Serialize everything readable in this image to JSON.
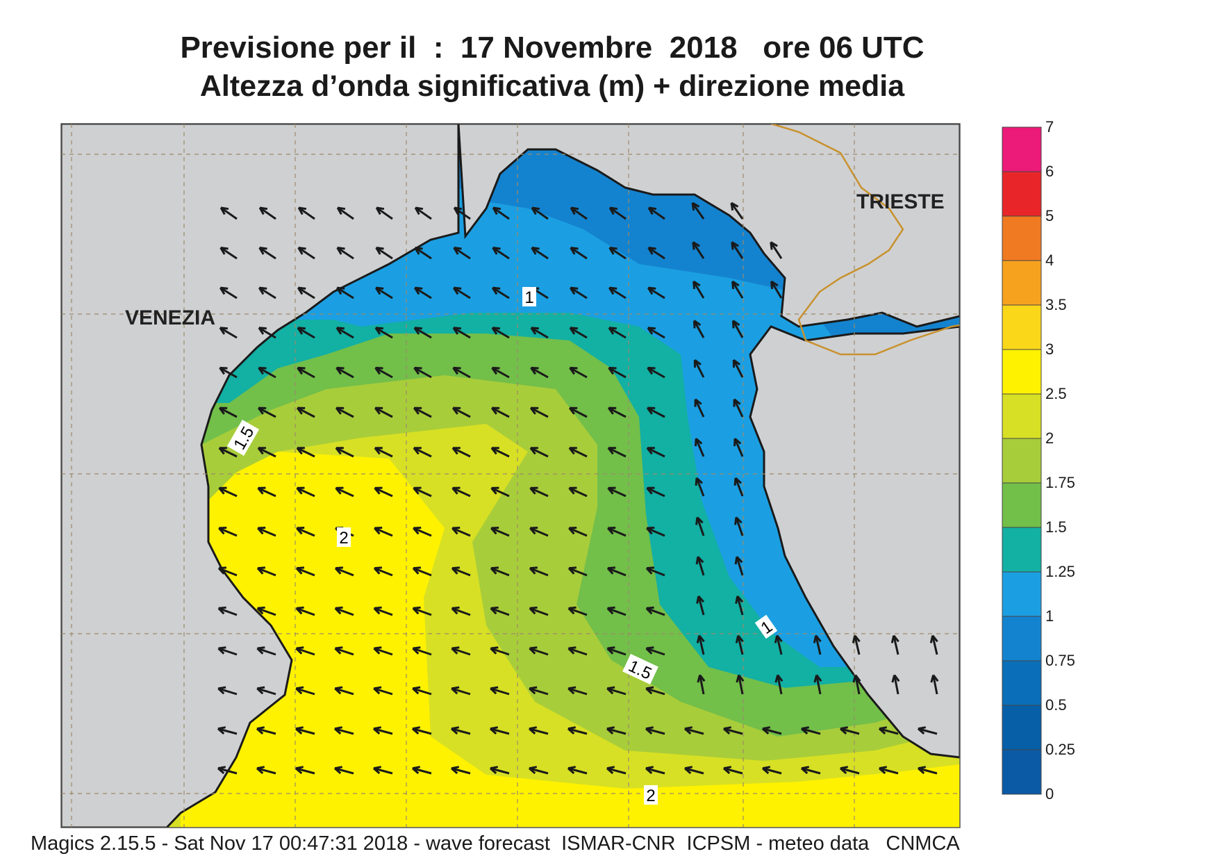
{
  "title": {
    "line1": "Previsione per il  :  17 Novembre  2018   ore 06 UTC",
    "line2": "Altezza d’onda significativa (m) + direzione media"
  },
  "cities": {
    "venezia": "VENEZIA",
    "trieste": "TRIESTE"
  },
  "contour_labels": [
    "1",
    "1.5",
    "2",
    "1",
    "1.5",
    "2"
  ],
  "colorbar": {
    "ticks": [
      "7",
      "6",
      "5",
      "4",
      "3.5",
      "3",
      "2.5",
      "2",
      "1.75",
      "1.5",
      "1.25",
      "1",
      "0.75",
      "0.5",
      "0.25",
      "0"
    ],
    "colors_top_to_bottom": [
      "#ec1a78",
      "#e8262a",
      "#f07a22",
      "#f7a21e",
      "#fbd71a",
      "#fff200",
      "#d7e024",
      "#a8cd3a",
      "#72bf4a",
      "#13b0a4",
      "#1b9fe2",
      "#1483cf",
      "#0a6fb8",
      "#075fa8",
      "#0b5aa6"
    ]
  },
  "footer": "Magics 2.15.5 - Sat Nov 17 00:47:31 2018 - wave forecast  ISMAR-CNR  ICPSM - meteo data   CNMCA",
  "colors": {
    "land": "#cfd0d2",
    "coast": "#1a1a1a",
    "border": "#c8922e",
    "arrow": "#1a1a1a",
    "grid": "#9b8a6a"
  }
}
